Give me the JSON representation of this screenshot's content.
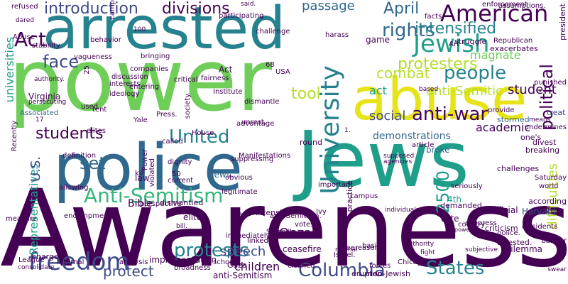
{
  "palette": {
    "dark_purple": "#440154",
    "indigo": "#3e4a89",
    "blue": "#31688e",
    "teal": "#26828e",
    "sea": "#1f9e89",
    "green": "#35b779",
    "lime": "#6ece58",
    "yellowgreen": "#b5de2b",
    "yellow": "#e6e419"
  },
  "words": [
    {
      "text": "Awareness",
      "color": "#440154"
    },
    {
      "text": "power",
      "color": "#6ece58"
    },
    {
      "text": "police",
      "color": "#31688e"
    },
    {
      "text": "Jews",
      "color": "#1f9e89"
    },
    {
      "text": "abuse",
      "color": "#e6e419"
    },
    {
      "text": "arrested",
      "color": "#26828e"
    },
    {
      "text": "freedom",
      "color": "#3e4a89"
    },
    {
      "text": "Columbia",
      "color": "#3e4a89"
    },
    {
      "text": "protests",
      "color": "#26828e"
    },
    {
      "text": "Anti-Semitism",
      "color": "#35b779"
    },
    {
      "text": "United",
      "color": "#26828e"
    },
    {
      "text": "States",
      "color": "#26828e"
    },
    {
      "text": "University",
      "color": "#26828e"
    },
    {
      "text": "Jewish",
      "color": "#1f9e89"
    },
    {
      "text": "American",
      "color": "#440154"
    },
    {
      "text": "students",
      "color": "#440154"
    },
    {
      "text": "people",
      "color": "#26828e"
    },
    {
      "text": "rights",
      "color": "#31688e"
    },
    {
      "text": "introduction",
      "color": "#3e4a89"
    },
    {
      "text": "divisions",
      "color": "#440154"
    },
    {
      "text": "Act",
      "color": "#440154"
    },
    {
      "text": "face",
      "color": "#3e4a89"
    },
    {
      "text": "passage",
      "color": "#31688e"
    },
    {
      "text": "April",
      "color": "#31688e"
    },
    {
      "text": "intensified",
      "color": "#26828e"
    },
    {
      "text": "protesters",
      "color": "#b5de2b"
    },
    {
      "text": "combat",
      "color": "#b5de2b"
    },
    {
      "text": "anti-war",
      "color": "#440154"
    },
    {
      "text": "political",
      "color": "#440154"
    },
    {
      "text": "difficulties",
      "color": "#b5de2b"
    },
    {
      "text": "student",
      "color": "#440154"
    },
    {
      "text": "act",
      "color": "#1f9e89"
    },
    {
      "text": "anti-Semitic",
      "color": "#b5de2b"
    },
    {
      "text": "tool",
      "color": "#b5de2b"
    },
    {
      "text": "2500",
      "color": "#1f9e89"
    },
    {
      "text": "protect",
      "color": "#3e4a89"
    },
    {
      "text": "speech",
      "color": "#3e4a89"
    },
    {
      "text": "set",
      "color": "#31688e"
    },
    {
      "text": "universities",
      "color": "#1f9e89"
    },
    {
      "text": "Representatives",
      "color": "#1f9e89"
    },
    {
      "text": "U.S.",
      "color": "#3e4a89"
    },
    {
      "text": "social",
      "color": "#3e4a89"
    },
    {
      "text": "magnate",
      "color": "#6ece58"
    },
    {
      "text": "Onza",
      "color": "#440154"
    },
    {
      "text": "children",
      "color": "#440154"
    },
    {
      "text": "academic",
      "color": "#440154"
    },
    {
      "text": "demonstrations",
      "color": "#31688e"
    },
    {
      "text": "Bible",
      "color": "#440154"
    },
    {
      "text": "law",
      "color": "#440154"
    },
    {
      "text": "ceasefire",
      "color": "#440154"
    },
    {
      "text": "Jews.",
      "color": "#31688e"
    },
    {
      "text": "Harvard",
      "color": "#3e4a89"
    },
    {
      "text": "official",
      "color": "#440154"
    },
    {
      "text": "Republican",
      "color": "#440154"
    },
    {
      "text": "game",
      "color": "#440154"
    },
    {
      "text": "struggle",
      "color": "#440154"
    },
    {
      "text": "exacerbates",
      "color": "#440154"
    },
    {
      "text": "president",
      "color": "#440154"
    },
    {
      "text": "stormed",
      "color": "#31688e"
    },
    {
      "text": "broke",
      "color": "#31688e"
    },
    {
      "text": "treat",
      "color": "#3e4a89"
    },
    {
      "text": "4th",
      "color": "#1f9e89"
    },
    {
      "text": "elite",
      "color": "#440154"
    },
    {
      "text": "Act",
      "color": "#440154"
    },
    {
      "text": "divest",
      "color": "#440154"
    },
    {
      "text": "challenges",
      "color": "#440154"
    },
    {
      "text": "breaking",
      "color": "#440154"
    },
    {
      "text": "implementation",
      "color": "#440154"
    },
    {
      "text": "Dilemma",
      "color": "#440154"
    },
    {
      "text": "arrested.",
      "color": "#440154"
    },
    {
      "text": "Gaza",
      "color": "#440154"
    },
    {
      "text": "anti-Semitism",
      "color": "#440154"
    },
    {
      "text": "erupted",
      "color": "#440154"
    },
    {
      "text": "clashed",
      "color": "#440154"
    },
    {
      "text": "refused",
      "color": "#440154"
    },
    {
      "text": "dared",
      "color": "#440154"
    },
    {
      "text": "Abuse",
      "color": "#440154"
    },
    {
      "text": "stability.",
      "color": "#440154"
    },
    {
      "text": "Virginia",
      "color": "#440154"
    },
    {
      "text": "authority.",
      "color": "#440154"
    },
    {
      "text": "persecuting",
      "color": "#440154"
    },
    {
      "text": "elites",
      "color": "#440154"
    },
    {
      "text": "Associated",
      "color": "#31688e"
    },
    {
      "text": "definition",
      "color": "#440154"
    },
    {
      "text": "allowing",
      "color": "#440154"
    },
    {
      "text": "kill",
      "color": "#440154"
    },
    {
      "text": "dismantled",
      "color": "#440154"
    },
    {
      "text": "Power",
      "color": "#440154"
    },
    {
      "text": "charges",
      "color": "#440154"
    },
    {
      "text": "League",
      "color": "#440154"
    },
    {
      "text": "internal",
      "color": "#440154"
    },
    {
      "text": "consolidate",
      "color": "#440154"
    },
    {
      "text": "broadness",
      "color": "#440154"
    },
    {
      "text": "Chicago",
      "color": "#440154"
    },
    {
      "text": "forces",
      "color": "#440154"
    },
    {
      "text": "non-Jewish",
      "color": "#440154"
    },
    {
      "text": "Israel.",
      "color": "#440154"
    },
    {
      "text": "free",
      "color": "#440154"
    },
    {
      "text": "basic",
      "color": "#440154"
    },
    {
      "text": "authority",
      "color": "#440154"
    },
    {
      "text": "reason.",
      "color": "#440154"
    },
    {
      "text": "normal",
      "color": "#440154"
    },
    {
      "text": "votes",
      "color": "#440154"
    },
    {
      "text": "Secondly",
      "color": "#440154"
    },
    {
      "text": "linked",
      "color": "#440154"
    },
    {
      "text": "bill.",
      "color": "#440154"
    },
    {
      "text": "anti-Semitism.",
      "color": "#440154"
    },
    {
      "text": "immediately",
      "color": "#440154"
    },
    {
      "text": "Ivy",
      "color": "#440154"
    },
    {
      "text": "campus",
      "color": "#440154"
    },
    {
      "text": "individuals",
      "color": "#440154"
    },
    {
      "text": "intensify",
      "color": "#440154"
    },
    {
      "text": "police.",
      "color": "#440154"
    },
    {
      "text": "vote",
      "color": "#440154"
    },
    {
      "text": "power",
      "color": "#440154"
    },
    {
      "text": "banner",
      "color": "#440154"
    },
    {
      "text": "dissidents",
      "color": "#440154"
    },
    {
      "text": "suppress",
      "color": "#440154"
    },
    {
      "text": "criticism",
      "color": "#440154"
    },
    {
      "text": "according",
      "color": "#440154"
    },
    {
      "text": "world",
      "color": "#440154"
    },
    {
      "text": "Saturday",
      "color": "#440154"
    },
    {
      "text": "country",
      "color": "#440154"
    },
    {
      "text": "demanded",
      "color": "#440154"
    },
    {
      "text": "seriously",
      "color": "#440154"
    },
    {
      "text": "important",
      "color": "#440154"
    },
    {
      "text": "practice",
      "color": "#440154"
    },
    {
      "text": "agencies",
      "color": "#440154"
    },
    {
      "text": "supposed",
      "color": "#440154"
    },
    {
      "text": "round",
      "color": "#440154"
    },
    {
      "text": "unrest.",
      "color": "#440154"
    },
    {
      "text": "Yale",
      "color": "#440154"
    },
    {
      "text": "Press.",
      "color": "#440154"
    },
    {
      "text": "House",
      "color": "#440154"
    },
    {
      "text": "called",
      "color": "#440154"
    },
    {
      "text": "dignity",
      "color": "#440154"
    },
    {
      "text": "50",
      "color": "#440154"
    },
    {
      "text": "obvious",
      "color": "#440154"
    },
    {
      "text": "legitimate",
      "color": "#440154"
    },
    {
      "text": "hand",
      "color": "#440154"
    },
    {
      "text": "use",
      "color": "#440154"
    },
    {
      "text": "used",
      "color": "#440154"
    },
    {
      "text": "tent",
      "color": "#440154"
    },
    {
      "text": "interests",
      "color": "#440154"
    },
    {
      "text": "ideology",
      "color": "#440154"
    },
    {
      "text": "discussion",
      "color": "#440154"
    },
    {
      "text": "entering",
      "color": "#440154"
    },
    {
      "text": "companies",
      "color": "#440154"
    },
    {
      "text": "bringing",
      "color": "#440154"
    },
    {
      "text": "society.",
      "color": "#440154"
    },
    {
      "text": "Institute",
      "color": "#440154"
    },
    {
      "text": "dismantle",
      "color": "#440154"
    },
    {
      "text": "fairness",
      "color": "#440154"
    },
    {
      "text": "68",
      "color": "#440154"
    },
    {
      "text": "USA",
      "color": "#440154"
    },
    {
      "text": "harass",
      "color": "#440154"
    },
    {
      "text": "Art",
      "color": "#440154"
    },
    {
      "text": "facts",
      "color": "#440154"
    },
    {
      "text": "enforcement",
      "color": "#440154"
    },
    {
      "text": "assumptions.",
      "color": "#440154"
    },
    {
      "text": "said.",
      "color": "#440154"
    },
    {
      "text": "participating",
      "color": "#440154"
    },
    {
      "text": "behavior",
      "color": "#440154"
    },
    {
      "text": "camp",
      "color": "#440154"
    },
    {
      "text": "challenge",
      "color": "#440154"
    },
    {
      "text": "vagueness",
      "color": "#440154"
    },
    {
      "text": "critical",
      "color": "#440154"
    },
    {
      "text": "current",
      "color": "#440154"
    },
    {
      "text": "suppressing",
      "color": "#440154"
    },
    {
      "text": "Manifestations",
      "color": "#440154"
    },
    {
      "text": "advantage",
      "color": "#440154"
    },
    {
      "text": "provide",
      "color": "#440154"
    },
    {
      "text": "article",
      "color": "#440154"
    },
    {
      "text": "undermines",
      "color": "#440154"
    },
    {
      "text": "punished",
      "color": "#440154"
    },
    {
      "text": "means",
      "color": "#440154"
    },
    {
      "text": "one's",
      "color": "#440154"
    },
    {
      "text": "ignored",
      "color": "#440154"
    },
    {
      "text": "subjective",
      "color": "#440154"
    },
    {
      "text": "swear",
      "color": "#440154"
    },
    {
      "text": "analysis",
      "color": "#440154"
    },
    {
      "text": "perspective",
      "color": "#440154"
    },
    {
      "text": "violated",
      "color": "#440154"
    },
    {
      "text": "Recently",
      "color": "#440154"
    },
    {
      "text": "encampment",
      "color": "#440154"
    },
    {
      "text": "measure",
      "color": "#440154"
    },
    {
      "text": "school",
      "color": "#440154"
    },
    {
      "text": "fight",
      "color": "#440154"
    },
    {
      "text": "based",
      "color": "#440154"
    },
    {
      "text": "100",
      "color": "#440154"
    },
    {
      "text": "1.",
      "color": "#440154"
    },
    {
      "text": "25",
      "color": "#440154"
    },
    {
      "text": "17",
      "color": "#440154"
    },
    {
      "text": "18",
      "color": "#440154"
    },
    {
      "text": "Anti-Semitic",
      "color": "#440154"
    },
    {
      "text": "Art",
      "color": "#440154"
    }
  ]
}
